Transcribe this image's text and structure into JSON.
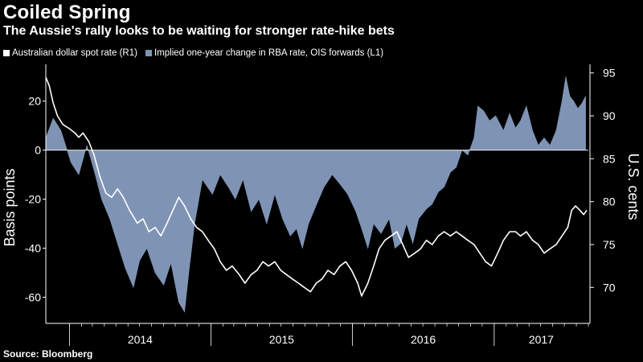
{
  "title": "Coiled Spring",
  "subtitle": "The Aussie's rally looks to be waiting for stronger rate-hike bets",
  "source": "Source: Bloomberg",
  "colors": {
    "background": "#000000",
    "area": "#7f94b5",
    "line": "#ffffff",
    "text": "#ffffff"
  },
  "chart_data": {
    "type": "area",
    "title": "Coiled Spring",
    "subtitle": "The Aussie's rally looks to be waiting for stronger rate-hike bets",
    "legend_position": "top-left",
    "grid": false,
    "x_range": [
      "2013-11-01",
      "2017-09-01"
    ],
    "x_tick_labels": [
      "2014",
      "2015",
      "2016",
      "2017"
    ],
    "left_axis": {
      "label": "Basis points",
      "range": [
        -70,
        35
      ],
      "ticks": [
        -60,
        -40,
        -20,
        0,
        20
      ]
    },
    "right_axis": {
      "label": "U.S. cents",
      "range": [
        66,
        96
      ],
      "ticks": [
        70,
        75,
        80,
        85,
        90,
        95
      ]
    },
    "series": [
      {
        "name": "Implied one-year change in RBA rate, OIS forwards (L1)",
        "axis": "left",
        "kind": "area",
        "points": [
          [
            "2013-11-01",
            5
          ],
          [
            "2013-11-20",
            13
          ],
          [
            "2013-12-10",
            8
          ],
          [
            "2014-01-05",
            -5
          ],
          [
            "2014-01-25",
            -10
          ],
          [
            "2014-02-15",
            2
          ],
          [
            "2014-03-05",
            -8
          ],
          [
            "2014-03-25",
            -20
          ],
          [
            "2014-04-15",
            -28
          ],
          [
            "2014-05-05",
            -38
          ],
          [
            "2014-05-25",
            -48
          ],
          [
            "2014-06-15",
            -56
          ],
          [
            "2014-07-01",
            -45
          ],
          [
            "2014-07-20",
            -40
          ],
          [
            "2014-08-10",
            -50
          ],
          [
            "2014-09-01",
            -55
          ],
          [
            "2014-09-20",
            -46
          ],
          [
            "2014-10-10",
            -62
          ],
          [
            "2014-10-25",
            -66
          ],
          [
            "2014-11-05",
            -50
          ],
          [
            "2014-11-20",
            -30
          ],
          [
            "2014-12-10",
            -12
          ],
          [
            "2015-01-05",
            -18
          ],
          [
            "2015-01-25",
            -10
          ],
          [
            "2015-02-15",
            -15
          ],
          [
            "2015-03-05",
            -20
          ],
          [
            "2015-03-25",
            -12
          ],
          [
            "2015-04-15",
            -25
          ],
          [
            "2015-05-05",
            -20
          ],
          [
            "2015-05-25",
            -30
          ],
          [
            "2015-06-15",
            -18
          ],
          [
            "2015-07-05",
            -28
          ],
          [
            "2015-07-25",
            -35
          ],
          [
            "2015-08-10",
            -32
          ],
          [
            "2015-08-25",
            -40
          ],
          [
            "2015-09-10",
            -30
          ],
          [
            "2015-10-01",
            -22
          ],
          [
            "2015-10-20",
            -15
          ],
          [
            "2015-11-10",
            -10
          ],
          [
            "2015-12-01",
            -14
          ],
          [
            "2015-12-20",
            -18
          ],
          [
            "2016-01-10",
            -25
          ],
          [
            "2016-01-25",
            -32
          ],
          [
            "2016-02-10",
            -40
          ],
          [
            "2016-02-25",
            -30
          ],
          [
            "2016-03-15",
            -34
          ],
          [
            "2016-04-05",
            -28
          ],
          [
            "2016-04-20",
            -40
          ],
          [
            "2016-05-05",
            -38
          ],
          [
            "2016-05-20",
            -30
          ],
          [
            "2016-06-05",
            -38
          ],
          [
            "2016-06-20",
            -28
          ],
          [
            "2016-07-10",
            -24
          ],
          [
            "2016-07-25",
            -22
          ],
          [
            "2016-08-10",
            -17
          ],
          [
            "2016-08-25",
            -15
          ],
          [
            "2016-09-10",
            -9
          ],
          [
            "2016-09-25",
            -7
          ],
          [
            "2016-10-10",
            0
          ],
          [
            "2016-10-25",
            -2
          ],
          [
            "2016-11-10",
            5
          ],
          [
            "2016-11-20",
            18
          ],
          [
            "2016-12-05",
            16
          ],
          [
            "2016-12-20",
            12
          ],
          [
            "2017-01-05",
            14
          ],
          [
            "2017-01-25",
            8
          ],
          [
            "2017-02-10",
            15
          ],
          [
            "2017-02-25",
            9
          ],
          [
            "2017-03-10",
            12
          ],
          [
            "2017-03-25",
            18
          ],
          [
            "2017-04-10",
            8
          ],
          [
            "2017-04-25",
            2
          ],
          [
            "2017-05-10",
            5
          ],
          [
            "2017-05-25",
            2
          ],
          [
            "2017-06-10",
            8
          ],
          [
            "2017-06-25",
            20
          ],
          [
            "2017-07-05",
            30
          ],
          [
            "2017-07-15",
            22
          ],
          [
            "2017-07-25",
            20
          ],
          [
            "2017-08-05",
            17
          ],
          [
            "2017-08-15",
            19
          ],
          [
            "2017-08-25",
            22
          ]
        ]
      },
      {
        "name": "Australian dollar spot rate (R1)",
        "axis": "right",
        "kind": "line",
        "points": [
          [
            "2013-11-01",
            94.5
          ],
          [
            "2013-11-10",
            93.5
          ],
          [
            "2013-11-20",
            91.5
          ],
          [
            "2013-12-01",
            90.0
          ],
          [
            "2013-12-15",
            89.0
          ],
          [
            "2014-01-01",
            88.5
          ],
          [
            "2014-01-15",
            88.0
          ],
          [
            "2014-01-25",
            87.5
          ],
          [
            "2014-02-05",
            88.0
          ],
          [
            "2014-02-20",
            87.0
          ],
          [
            "2014-03-05",
            85.5
          ],
          [
            "2014-03-20",
            83.0
          ],
          [
            "2014-04-05",
            81.0
          ],
          [
            "2014-04-20",
            80.5
          ],
          [
            "2014-05-05",
            81.5
          ],
          [
            "2014-05-20",
            80.5
          ],
          [
            "2014-06-05",
            79.0
          ],
          [
            "2014-06-25",
            77.5
          ],
          [
            "2014-07-10",
            78.0
          ],
          [
            "2014-07-25",
            76.5
          ],
          [
            "2014-08-10",
            77.0
          ],
          [
            "2014-08-25",
            76.0
          ],
          [
            "2014-09-10",
            77.5
          ],
          [
            "2014-09-25",
            79.0
          ],
          [
            "2014-10-10",
            80.5
          ],
          [
            "2014-10-25",
            79.5
          ],
          [
            "2014-11-10",
            78.0
          ],
          [
            "2014-11-25",
            77.0
          ],
          [
            "2014-12-10",
            76.5
          ],
          [
            "2014-12-25",
            75.5
          ],
          [
            "2015-01-10",
            74.5
          ],
          [
            "2015-01-25",
            73.0
          ],
          [
            "2015-02-10",
            72.0
          ],
          [
            "2015-02-25",
            72.5
          ],
          [
            "2015-03-15",
            71.5
          ],
          [
            "2015-03-30",
            70.5
          ],
          [
            "2015-04-15",
            71.5
          ],
          [
            "2015-04-30",
            72.0
          ],
          [
            "2015-05-15",
            73.0
          ],
          [
            "2015-05-30",
            72.5
          ],
          [
            "2015-06-15",
            73.0
          ],
          [
            "2015-06-30",
            72.0
          ],
          [
            "2015-07-15",
            71.5
          ],
          [
            "2015-07-30",
            71.0
          ],
          [
            "2015-08-15",
            70.5
          ],
          [
            "2015-08-30",
            70.0
          ],
          [
            "2015-09-15",
            69.5
          ],
          [
            "2015-09-30",
            70.5
          ],
          [
            "2015-10-15",
            71.0
          ],
          [
            "2015-10-30",
            72.0
          ],
          [
            "2015-11-15",
            71.5
          ],
          [
            "2015-11-30",
            72.5
          ],
          [
            "2015-12-15",
            73.0
          ],
          [
            "2015-12-30",
            72.0
          ],
          [
            "2016-01-15",
            70.5
          ],
          [
            "2016-01-25",
            69.0
          ],
          [
            "2016-02-10",
            70.5
          ],
          [
            "2016-02-25",
            72.5
          ],
          [
            "2016-03-10",
            74.5
          ],
          [
            "2016-03-25",
            75.5
          ],
          [
            "2016-04-10",
            76.0
          ],
          [
            "2016-04-25",
            76.5
          ],
          [
            "2016-05-10",
            75.0
          ],
          [
            "2016-05-25",
            73.5
          ],
          [
            "2016-06-10",
            74.0
          ],
          [
            "2016-06-25",
            74.5
          ],
          [
            "2016-07-10",
            75.5
          ],
          [
            "2016-07-25",
            75.0
          ],
          [
            "2016-08-10",
            76.0
          ],
          [
            "2016-08-25",
            76.5
          ],
          [
            "2016-09-10",
            76.0
          ],
          [
            "2016-09-25",
            76.5
          ],
          [
            "2016-10-10",
            76.0
          ],
          [
            "2016-10-25",
            75.5
          ],
          [
            "2016-11-10",
            75.0
          ],
          [
            "2016-11-25",
            74.0
          ],
          [
            "2016-12-10",
            73.0
          ],
          [
            "2016-12-25",
            72.5
          ],
          [
            "2017-01-10",
            74.0
          ],
          [
            "2017-01-25",
            75.5
          ],
          [
            "2017-02-10",
            76.5
          ],
          [
            "2017-02-25",
            76.5
          ],
          [
            "2017-03-10",
            76.0
          ],
          [
            "2017-03-25",
            76.5
          ],
          [
            "2017-04-10",
            75.5
          ],
          [
            "2017-04-25",
            75.0
          ],
          [
            "2017-05-10",
            74.0
          ],
          [
            "2017-05-25",
            74.5
          ],
          [
            "2017-06-10",
            75.0
          ],
          [
            "2017-06-25",
            76.0
          ],
          [
            "2017-07-10",
            77.0
          ],
          [
            "2017-07-20",
            79.0
          ],
          [
            "2017-07-30",
            79.5
          ],
          [
            "2017-08-10",
            79.0
          ],
          [
            "2017-08-20",
            78.5
          ],
          [
            "2017-08-28",
            79.0
          ]
        ]
      }
    ]
  }
}
